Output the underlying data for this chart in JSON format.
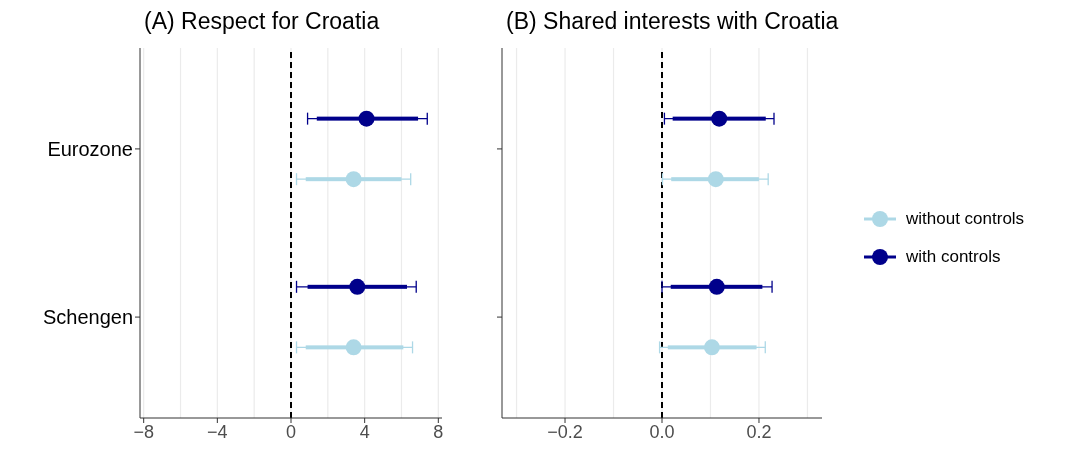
{
  "chart_data": [
    {
      "type": "scatter",
      "orientation": "horizontal",
      "title": "(A) Respect for Croatia",
      "categories": [
        "Eurozone",
        "Schengen"
      ],
      "xlim": [
        -8.2,
        8.2
      ],
      "xticks": [
        {
          "value": -8,
          "label": "−8"
        },
        {
          "value": -4,
          "label": "−4"
        },
        0,
        4,
        8
      ],
      "grid": "x",
      "legend": false,
      "marker": "circle",
      "ref_lines": [
        {
          "axis": "x",
          "value": 0,
          "color": "#000000",
          "line_style": "dashed"
        }
      ],
      "series": [
        {
          "type": "bar",
          "color": "#add8e6",
          "base": [
            0.8,
            0.8
          ],
          "values": [
            5.2,
            5.3
          ]
        },
        {
          "type": "bar",
          "color": "#00008b",
          "base": [
            1.4,
            0.9
          ],
          "values": [
            5.5,
            5.4
          ]
        },
        {
          "color": "#add8e6",
          "values": [
            3.4,
            3.4
          ],
          "errors": [
            [
              0.3,
              6.5
            ],
            [
              0.3,
              6.6
            ]
          ]
        },
        {
          "color": "#00008b",
          "values": [
            4.1,
            3.6
          ],
          "errors": [
            [
              0.9,
              7.4
            ],
            [
              0.3,
              6.8
            ]
          ]
        }
      ]
    },
    {
      "type": "scatter",
      "orientation": "horizontal",
      "title": "(B) Shared interests with Croatia",
      "categories": [
        null,
        null
      ],
      "xlim": [
        -0.33,
        0.33
      ],
      "xticks": [
        {
          "value": -0.2,
          "label": "−0.2"
        },
        {
          "value": 0,
          "label": "0.0"
        },
        0.2
      ],
      "grid": "x",
      "legend": "right",
      "marker": "circle",
      "tick_labels": "x",
      "ref_lines": [
        {
          "axis": "x",
          "value": 0,
          "color": "#000000",
          "line_style": "dashed"
        }
      ],
      "series": [
        {
          "type": "bar",
          "color": "#add8e6",
          "base": [
            0.019,
            0.012
          ],
          "values": [
            0.181,
            0.183
          ]
        },
        {
          "type": "bar",
          "color": "#00008b",
          "base": [
            0.022,
            0.018
          ],
          "values": [
            0.192,
            0.189
          ]
        },
        {
          "name": "without controls",
          "color": "#add8e6",
          "values": [
            0.111,
            0.103
          ],
          "errors": [
            [
              0.001,
              0.219
            ],
            [
              -0.005,
              0.213
            ]
          ]
        },
        {
          "name": "with controls",
          "color": "#00008b",
          "values": [
            0.118,
            0.113
          ],
          "errors": [
            [
              0.005,
              0.231
            ],
            [
              0.0,
              0.227
            ]
          ]
        }
      ]
    }
  ]
}
